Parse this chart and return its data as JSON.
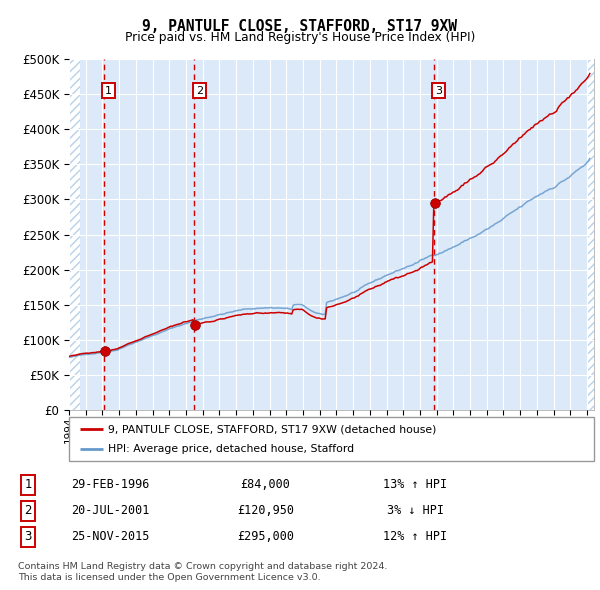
{
  "title": "9, PANTULF CLOSE, STAFFORD, ST17 9XW",
  "subtitle": "Price paid vs. HM Land Registry's House Price Index (HPI)",
  "legend_price": "9, PANTULF CLOSE, STAFFORD, ST17 9XW (detached house)",
  "legend_hpi": "HPI: Average price, detached house, Stafford",
  "table_rows": [
    {
      "num": "1",
      "date": "29-FEB-1996",
      "price": "£84,000",
      "hpi": "13% ↑ HPI"
    },
    {
      "num": "2",
      "date": "20-JUL-2001",
      "price": "£120,950",
      "hpi": "3% ↓ HPI"
    },
    {
      "num": "3",
      "date": "25-NOV-2015",
      "price": "£295,000",
      "hpi": "12% ↑ HPI"
    }
  ],
  "footnote": "Contains HM Land Registry data © Crown copyright and database right 2024.\nThis data is licensed under the Open Government Licence v3.0.",
  "purchase_prices": [
    84000,
    120950,
    295000
  ],
  "ylim": [
    0,
    500000
  ],
  "yticks": [
    0,
    50000,
    100000,
    150000,
    200000,
    250000,
    300000,
    350000,
    400000,
    450000,
    500000
  ],
  "plot_bg": "#dce9f8",
  "hatch_color": "#b8d0e8",
  "red_line_color": "#cc0000",
  "blue_line_color": "#6699cc",
  "vline_color": "#cc0000",
  "dot_color": "#cc0000",
  "label_box_color": "#cc0000"
}
